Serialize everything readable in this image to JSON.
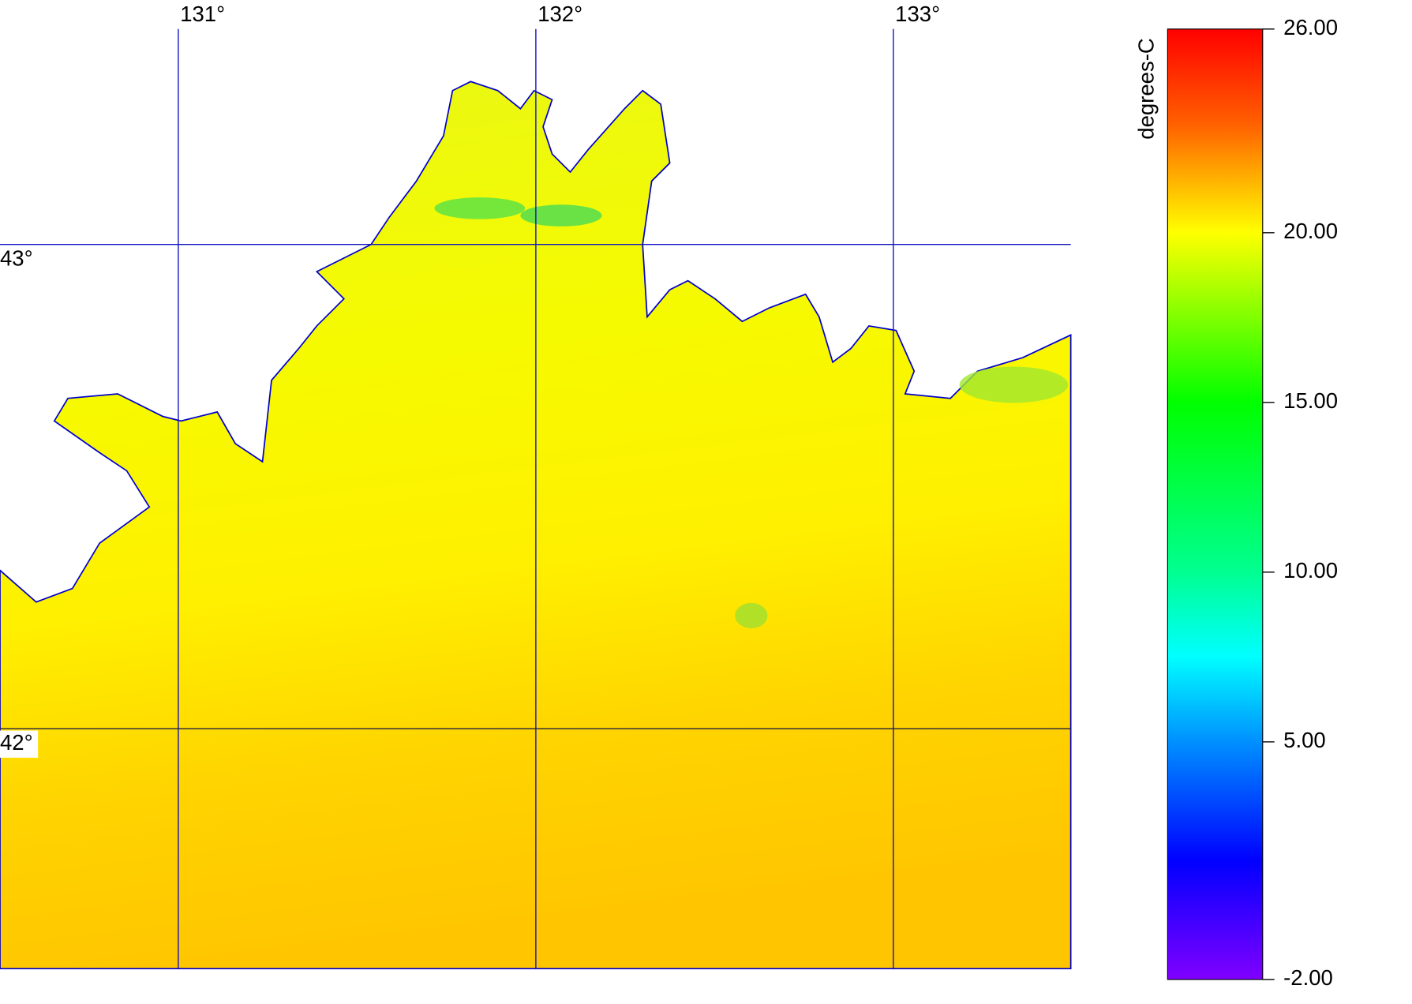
{
  "map": {
    "lon_ticks": [
      {
        "value": 131,
        "label": "131°"
      },
      {
        "value": 132,
        "label": "132°"
      },
      {
        "value": 133,
        "label": "133°"
      }
    ],
    "lat_ticks": [
      {
        "value": 43,
        "label": "43°"
      },
      {
        "value": 42,
        "label": "42°"
      }
    ],
    "colorbar": {
      "label": "degrees-C",
      "range": [
        -2,
        26
      ],
      "ticks": [
        {
          "value": 26,
          "label": "26.00"
        },
        {
          "value": 20,
          "label": "20.00"
        },
        {
          "value": 15,
          "label": "15.00"
        },
        {
          "value": 10,
          "label": "10.00"
        },
        {
          "value": 5,
          "label": "5.00"
        },
        {
          "value": -2,
          "label": "-2.00"
        }
      ]
    }
  }
}
